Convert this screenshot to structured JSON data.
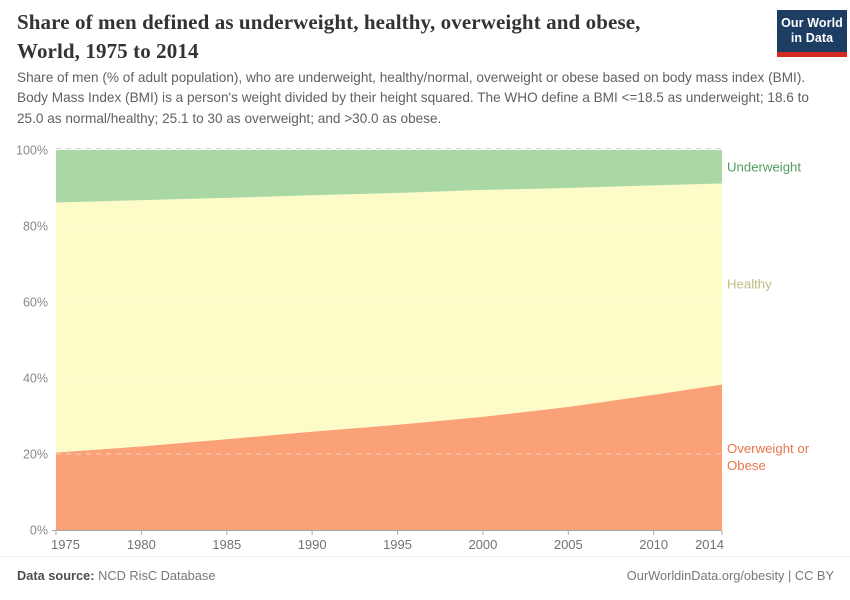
{
  "header": {
    "title": "Share of men defined as underweight, healthy, overweight and obese, World, 1975 to 2014",
    "title_lines": [
      "Share of men defined as underweight, healthy, overweight and obese,",
      "World, 1975 to 2014"
    ],
    "subtitle": "Share of men (% of adult population), who are underweight, healthy/normal, overweight or obese based on body mass index (BMI). Body Mass Index (BMI) is a person's weight divided by their height squared. The WHO define a BMI <=18.5 as underweight; 18.6 to 25.0 as normal/healthy; 25.1 to 30 as overweight; and >30.0 as obese.",
    "logo": {
      "line1": "Our World",
      "line2": "in Data",
      "bg_color": "#1d3d63",
      "stripe_color": "#d42b21"
    }
  },
  "chart_data": {
    "type": "area",
    "stacked": true,
    "title": "Share of men defined as underweight, healthy, overweight and obese, World, 1975 to 2014",
    "x": [
      1975,
      1980,
      1985,
      1990,
      1995,
      2000,
      2005,
      2010,
      2014
    ],
    "series": [
      {
        "name": "Overweight or Obese",
        "values": [
          20.4,
          22.0,
          23.9,
          25.9,
          27.7,
          29.8,
          32.4,
          35.6,
          38.3
        ],
        "fill": "#fba178",
        "label_color": "#e8764b"
      },
      {
        "name": "Healthy",
        "values": [
          65.8,
          64.8,
          63.5,
          62.2,
          61.0,
          59.7,
          57.6,
          55.1,
          52.9
        ],
        "fill": "#fdfbc7",
        "label_color": "#bfbe7e"
      },
      {
        "name": "Underweight",
        "values": [
          13.8,
          13.2,
          12.6,
          11.9,
          11.3,
          10.5,
          10.0,
          9.3,
          8.8
        ],
        "fill": "#a9d8a4",
        "label_color": "#549d61"
      }
    ],
    "ylim": [
      0,
      100
    ],
    "xlabel": "",
    "ylabel": "",
    "xticks": [
      1975,
      1980,
      1985,
      1990,
      1995,
      2000,
      2005,
      2010,
      2014
    ],
    "yticks": [
      {
        "value": 0,
        "label": "0%"
      },
      {
        "value": 20,
        "label": "20%"
      },
      {
        "value": 40,
        "label": "40%"
      },
      {
        "value": 60,
        "label": "60%"
      },
      {
        "value": 80,
        "label": "80%"
      },
      {
        "value": 100,
        "label": "100%"
      }
    ],
    "grid": true,
    "legend_position": "right"
  },
  "footer": {
    "source_label": "Data source:",
    "source_value": "NCD RisC Database",
    "link": "OurWorldinData.org/obesity | CC BY"
  }
}
